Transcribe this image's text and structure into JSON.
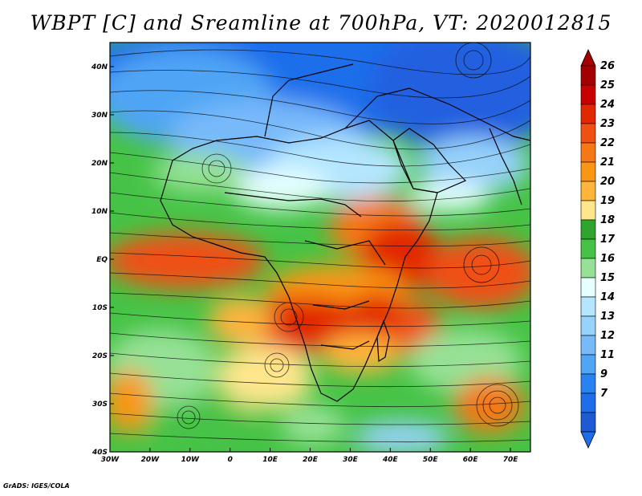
{
  "title": "WBPT [C] and Sreamline at 700hPa, VT: 2020012815",
  "credit": "GrADS: IGES/COLA",
  "map": {
    "lon_range": [
      -30,
      75
    ],
    "lat_range": [
      -40,
      45
    ],
    "x_ticks": [
      {
        "value": -30,
        "label": "30W"
      },
      {
        "value": -20,
        "label": "20W"
      },
      {
        "value": -10,
        "label": "10W"
      },
      {
        "value": 0,
        "label": "0"
      },
      {
        "value": 10,
        "label": "10E"
      },
      {
        "value": 20,
        "label": "20E"
      },
      {
        "value": 30,
        "label": "30E"
      },
      {
        "value": 40,
        "label": "40E"
      },
      {
        "value": 50,
        "label": "50E"
      },
      {
        "value": 60,
        "label": "60E"
      },
      {
        "value": 70,
        "label": "70E"
      }
    ],
    "y_ticks": [
      {
        "value": 40,
        "label": "40N"
      },
      {
        "value": 30,
        "label": "30N"
      },
      {
        "value": 20,
        "label": "20N"
      },
      {
        "value": 10,
        "label": "10N"
      },
      {
        "value": 0,
        "label": "EQ"
      },
      {
        "value": -10,
        "label": "10S"
      },
      {
        "value": -20,
        "label": "20S"
      },
      {
        "value": -30,
        "label": "30S"
      },
      {
        "value": -40,
        "label": "40S"
      }
    ]
  },
  "colorbar": {
    "levels": [
      {
        "label": "26",
        "color": "#a50000"
      },
      {
        "label": "25",
        "color": "#c80000"
      },
      {
        "label": "24",
        "color": "#e12800"
      },
      {
        "label": "23",
        "color": "#f05014"
      },
      {
        "label": "22",
        "color": "#f57814"
      },
      {
        "label": "21",
        "color": "#fa9614"
      },
      {
        "label": "20",
        "color": "#ffb43c"
      },
      {
        "label": "19",
        "color": "#ffe68c"
      },
      {
        "label": "18",
        "color": "#2fa52f"
      },
      {
        "label": "17",
        "color": "#46c346"
      },
      {
        "label": "16",
        "color": "#96e196"
      },
      {
        "label": "15",
        "color": "#e6ffff"
      },
      {
        "label": "14",
        "color": "#b4e6ff"
      },
      {
        "label": "13",
        "color": "#96d2fa"
      },
      {
        "label": "12",
        "color": "#78b9fa"
      },
      {
        "label": "11",
        "color": "#50a5f5"
      },
      {
        "label": "9",
        "color": "#2882f0"
      },
      {
        "label": "7",
        "color": "#1e6eeb"
      }
    ],
    "low_color": "#1e5ad2",
    "top_arrow_color": "#a50000",
    "bottom_arrow_color": "#1e6eeb"
  }
}
